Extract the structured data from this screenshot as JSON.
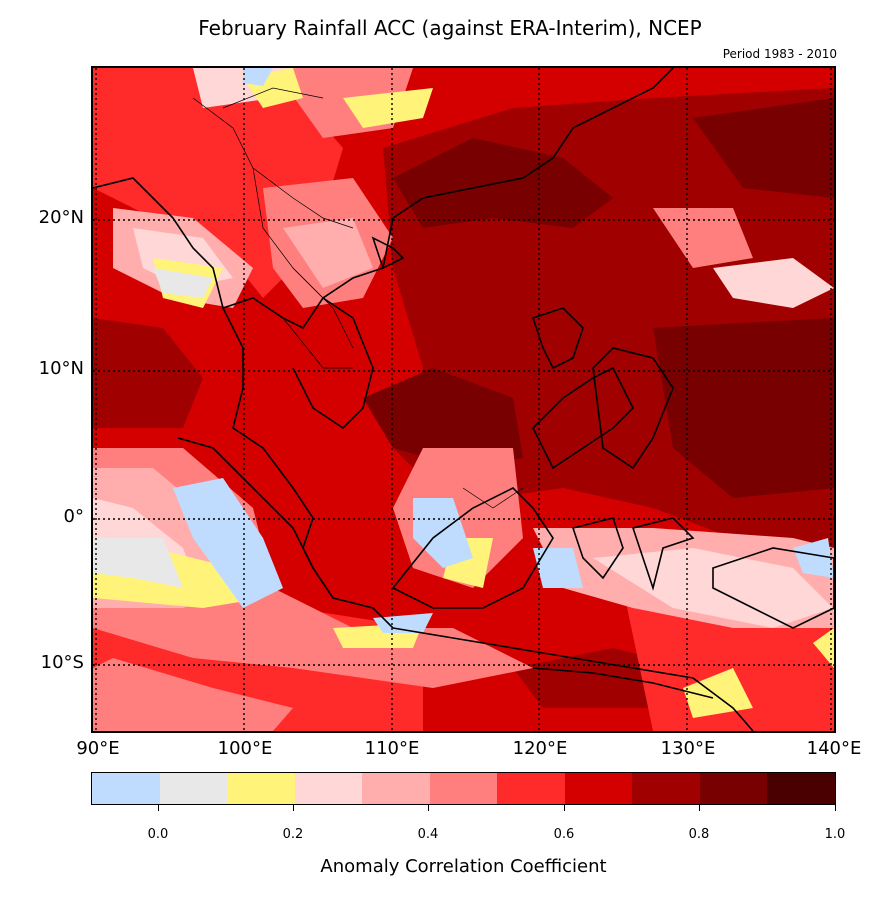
{
  "map": {
    "title": "February Rainfall ACC (against ERA-Interim), NCEP",
    "period": "Period 1983 - 2010",
    "lat_labels": [
      "20°N",
      "10°N",
      "0°",
      "10°S"
    ],
    "lon_labels": [
      "90°E",
      "100°E",
      "110°E",
      "120°E",
      "130°E",
      "140°E"
    ],
    "extent": {
      "lon": [
        90,
        140
      ],
      "lat": [
        -14.5,
        30
      ]
    },
    "gridlines": "dotted, every 10°",
    "land_outline": "black coastlines and country borders"
  },
  "colorbar": {
    "label": "Anomaly Correlation Coefficient",
    "ticks": [
      "0.0",
      "0.2",
      "0.4",
      "0.6",
      "0.8",
      "1.0"
    ],
    "levels": [
      -0.1,
      0.0,
      0.1,
      0.2,
      0.3,
      0.4,
      0.5,
      0.6,
      0.7,
      0.8,
      0.9,
      1.0
    ],
    "colors": [
      "#bfdcff",
      "#e8e8e8",
      "#fff37a",
      "#ffd7d7",
      "#ffadad",
      "#ff7f7f",
      "#ff2a2a",
      "#d40000",
      "#a00000",
      "#780000",
      "#4a0000"
    ]
  }
}
